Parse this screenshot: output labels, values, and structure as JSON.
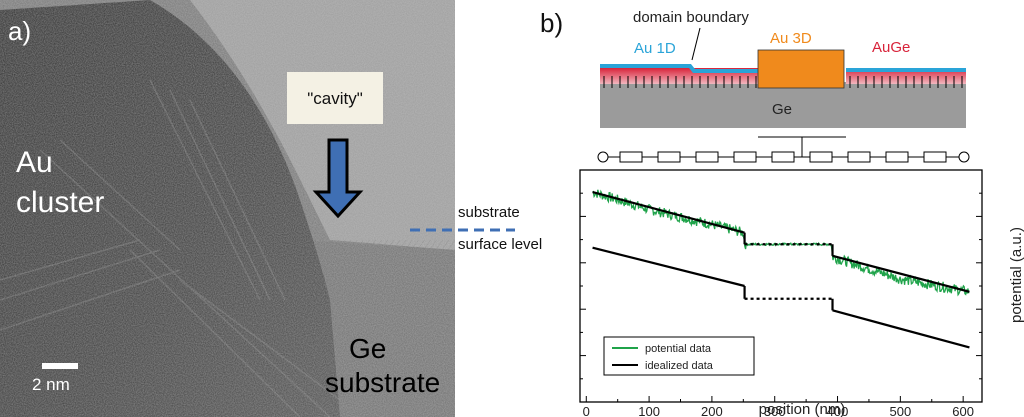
{
  "panel_a": {
    "label": "a)",
    "cluster_label_line1": "Au",
    "cluster_label_line2": "cluster",
    "cavity_label": "\"cavity\"",
    "scalebar_label": "2 nm",
    "ge_label_line1": "Ge",
    "ge_label_line2": "substrate",
    "surface_label_line1": "substrate",
    "surface_label_line2": "surface level",
    "arrow_color": "#3f6fb4",
    "surface_line_color": "#3f6fb4"
  },
  "panel_b": {
    "label": "b)",
    "schematic": {
      "domain_boundary_label": "domain boundary",
      "au1d_label": "Au 1D",
      "au3d_label": "Au 3D",
      "auge_label": "AuGe",
      "ge_label": "Ge",
      "colors": {
        "au1d": "#2aa4d8",
        "au3d": "#f08a1c",
        "auge": "#d8233a",
        "ge": "#9b9b9b"
      }
    }
  },
  "chart_data": {
    "type": "line",
    "xlabel": "position (nm)",
    "ylabel": "potential (a.u.)",
    "xlim": [
      -10,
      630
    ],
    "xticks": [
      0,
      100,
      200,
      300,
      400,
      500,
      600
    ],
    "ylim": [
      0,
      10
    ],
    "series": [
      {
        "name": "potential data",
        "color": "#1fa34a",
        "x": [
          10,
          100,
          200,
          250,
          252,
          390,
          392,
          500,
          610
        ],
        "y": [
          9.05,
          8.3,
          7.65,
          7.3,
          6.8,
          6.8,
          6.25,
          5.3,
          4.75
        ]
      },
      {
        "name": "idealized data",
        "color": "#000000",
        "segments": [
          {
            "x": [
              10,
              252
            ],
            "y": [
              9.05,
              7.3
            ]
          },
          {
            "x": [
              252,
              392
            ],
            "y": [
              6.8,
              6.8
            ],
            "dotted": true
          },
          {
            "x": [
              392,
              610
            ],
            "y": [
              6.3,
              4.75
            ]
          },
          {
            "x": [
              10,
              252
            ],
            "y": [
              6.65,
              5.0
            ]
          },
          {
            "x": [
              252,
              392
            ],
            "y": [
              4.45,
              4.45
            ],
            "dotted": true
          },
          {
            "x": [
              392,
              610
            ],
            "y": [
              3.95,
              2.35
            ]
          }
        ]
      }
    ],
    "legend": {
      "placement": "bottom-left"
    }
  }
}
